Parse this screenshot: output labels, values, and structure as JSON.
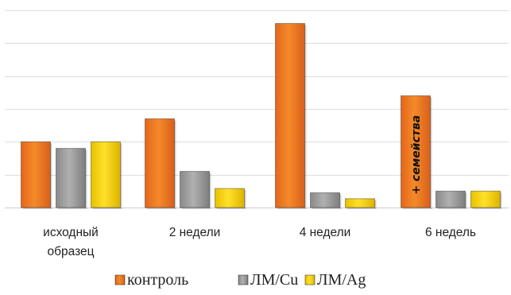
{
  "chart_data": {
    "type": "bar",
    "title": "",
    "xlabel": "",
    "ylabel": "",
    "ylim": [
      0,
      6
    ],
    "grid": true,
    "legend_position": "bottom",
    "categories": [
      [
        "исходный",
        "образец"
      ],
      [
        "2 недели"
      ],
      [
        "4 недели"
      ],
      [
        "6 недель"
      ]
    ],
    "series": [
      {
        "name": "контроль",
        "color": "#F07B1E",
        "values": [
          2.0,
          2.7,
          5.6,
          3.4
        ]
      },
      {
        "name": "ЛМ/Cu",
        "color": "#9C9C9C",
        "values": [
          1.8,
          1.1,
          0.45,
          0.5
        ]
      },
      {
        "name": "ЛМ/Ag",
        "color": "#F5D20A",
        "values": [
          2.0,
          0.58,
          0.27,
          0.5
        ]
      }
    ],
    "annotations": [
      {
        "text": "+ семейства",
        "category_index": 3,
        "series_index": 0
      }
    ]
  }
}
